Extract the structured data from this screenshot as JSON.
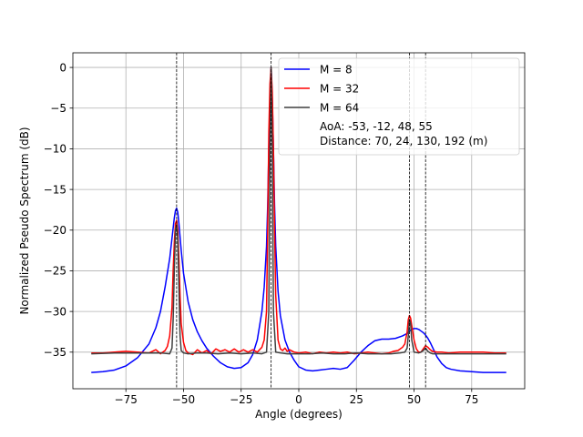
{
  "chart_data": {
    "type": "line",
    "title": "",
    "xlabel": "Angle (degrees)",
    "ylabel": "Normalized Pseudo Spectrum (dB)",
    "xlim": [
      -98,
      98
    ],
    "ylim": [
      -39.5,
      1.8
    ],
    "grid": true,
    "legend_position": "top-right",
    "xticks": [
      -75,
      -50,
      -25,
      0,
      25,
      50,
      75
    ],
    "xtick_labels": [
      "−75",
      "−50",
      "−25",
      "0",
      "25",
      "50",
      "75"
    ],
    "yticks": [
      0,
      -5,
      -10,
      -15,
      -20,
      -25,
      -30,
      -35
    ],
    "ytick_labels": [
      "0",
      "−5",
      "−10",
      "−15",
      "−20",
      "−25",
      "−30",
      "−35"
    ],
    "vlines": [
      -53,
      -12,
      48,
      55
    ],
    "annotation_lines": [
      "AoA: -53, -12, 48, 55",
      "Distance: 70, 24, 130, 192 (m)"
    ],
    "series": [
      {
        "name": "M = 8",
        "color": "#0000ff",
        "x": [
          -90,
          -85,
          -80,
          -75,
          -70,
          -65,
          -62,
          -60,
          -58,
          -56,
          -55,
          -54,
          -53.5,
          -53,
          -52.5,
          -52,
          -51,
          -50,
          -48,
          -46,
          -44,
          -42,
          -40,
          -37,
          -34,
          -31,
          -28,
          -25,
          -22,
          -20,
          -18,
          -16,
          -15,
          -14,
          -13.5,
          -13,
          -12.5,
          -12,
          -11.5,
          -11,
          -10.5,
          -10,
          -9,
          -8,
          -6,
          -4,
          -2,
          0,
          3,
          6,
          9,
          12,
          15,
          18,
          21,
          24,
          27,
          30,
          33,
          36,
          39,
          42,
          45,
          47,
          48,
          49,
          50,
          51,
          52,
          53,
          54,
          55,
          56,
          57,
          58,
          59,
          60,
          61,
          62,
          64,
          66,
          70,
          75,
          80,
          85,
          90
        ],
        "y": [
          -37.5,
          -37.4,
          -37.2,
          -36.7,
          -35.7,
          -34.0,
          -32.0,
          -30.0,
          -27.0,
          -23.5,
          -21.0,
          -18.5,
          -17.6,
          -17.3,
          -17.8,
          -19.2,
          -22.5,
          -25.3,
          -28.8,
          -31.0,
          -32.5,
          -33.6,
          -34.5,
          -35.5,
          -36.3,
          -36.8,
          -37.0,
          -36.9,
          -36.3,
          -35.3,
          -33.5,
          -30.0,
          -27.0,
          -22.0,
          -17.0,
          -10.0,
          -4.0,
          0.0,
          -4.0,
          -10.0,
          -17.0,
          -22.0,
          -27.5,
          -30.5,
          -33.5,
          -35.0,
          -36.0,
          -36.8,
          -37.2,
          -37.3,
          -37.2,
          -37.1,
          -37.0,
          -37.1,
          -36.9,
          -36.0,
          -35.0,
          -34.2,
          -33.6,
          -33.4,
          -33.4,
          -33.3,
          -33.0,
          -32.7,
          -32.4,
          -32.2,
          -32.1,
          -32.1,
          -32.2,
          -32.4,
          -32.6,
          -32.9,
          -33.3,
          -33.8,
          -34.4,
          -35.0,
          -35.6,
          -36.0,
          -36.4,
          -36.9,
          -37.1,
          -37.3,
          -37.4,
          -37.5,
          -37.5,
          -37.5
        ]
      },
      {
        "name": "M = 32",
        "color": "#ff0000",
        "x": [
          -90,
          -85,
          -80,
          -75,
          -70,
          -65,
          -62,
          -60,
          -58,
          -57,
          -56,
          -55,
          -54.5,
          -54,
          -53.5,
          -53,
          -52.5,
          -52,
          -51.5,
          -51,
          -50,
          -49,
          -48,
          -46,
          -44,
          -42,
          -40,
          -38,
          -36,
          -34,
          -32,
          -30,
          -28,
          -26,
          -24,
          -22,
          -20,
          -18,
          -16,
          -15,
          -14,
          -13.5,
          -13,
          -12.5,
          -12,
          -11.5,
          -11,
          -10.5,
          -10,
          -9,
          -8,
          -7,
          -6,
          -5,
          -4,
          -2,
          0,
          3,
          6,
          9,
          12,
          15,
          18,
          21,
          24,
          27,
          30,
          33,
          36,
          39,
          41,
          43,
          44,
          45,
          46,
          47,
          47.5,
          48,
          48.5,
          49,
          50,
          51,
          52,
          53,
          54,
          55,
          56,
          57,
          58,
          60,
          62,
          65,
          70,
          75,
          80,
          85,
          90
        ],
        "y": [
          -35.1,
          -35.1,
          -35.0,
          -34.9,
          -35.0,
          -35.1,
          -34.7,
          -35.2,
          -34.8,
          -34.3,
          -33.0,
          -29.5,
          -25.0,
          -21.5,
          -19.2,
          -18.8,
          -20.0,
          -23.5,
          -28.0,
          -31.5,
          -33.8,
          -34.8,
          -35.1,
          -35.3,
          -34.7,
          -35.1,
          -34.8,
          -35.2,
          -34.6,
          -34.9,
          -34.7,
          -35.0,
          -34.6,
          -35.0,
          -34.7,
          -35.0,
          -34.7,
          -35.0,
          -34.4,
          -33.5,
          -30.0,
          -20.0,
          -8.0,
          -2.0,
          0.0,
          -3.0,
          -10.0,
          -20.0,
          -28.0,
          -33.5,
          -34.6,
          -34.8,
          -34.5,
          -34.9,
          -34.7,
          -35.0,
          -35.1,
          -35.0,
          -35.2,
          -35.0,
          -35.1,
          -35.0,
          -35.1,
          -35.0,
          -35.2,
          -35.1,
          -35.0,
          -35.1,
          -35.2,
          -35.1,
          -34.9,
          -34.8,
          -34.6,
          -34.4,
          -34.0,
          -32.5,
          -31.0,
          -30.5,
          -30.8,
          -31.7,
          -33.5,
          -34.6,
          -35.0,
          -35.0,
          -34.6,
          -34.2,
          -34.4,
          -34.7,
          -34.9,
          -35.0,
          -35.0,
          -35.1,
          -35.0,
          -35.0,
          -35.0,
          -35.1,
          -35.1
        ]
      },
      {
        "name": "M = 64",
        "color": "#404040",
        "x": [
          -90,
          -80,
          -70,
          -60,
          -56,
          -55,
          -54.5,
          -54,
          -53.5,
          -53,
          -52.5,
          -52,
          -51.5,
          -51,
          -50,
          -48,
          -44,
          -40,
          -35,
          -30,
          -25,
          -20,
          -16,
          -14,
          -13,
          -12.5,
          -12,
          -11.5,
          -11,
          -10,
          -8,
          -5,
          0,
          5,
          10,
          15,
          20,
          25,
          30,
          35,
          40,
          44,
          46,
          47,
          47.5,
          48,
          48.5,
          49,
          50,
          52,
          53,
          54,
          55,
          56,
          57,
          58,
          60,
          65,
          70,
          80,
          90
        ],
        "y": [
          -35.2,
          -35.1,
          -35.1,
          -35.1,
          -35.2,
          -34.5,
          -31.0,
          -25.0,
          -20.0,
          -19.3,
          -21.0,
          -27.0,
          -33.0,
          -34.8,
          -35.1,
          -35.2,
          -35.1,
          -35.1,
          -35.2,
          -35.1,
          -35.2,
          -35.1,
          -35.2,
          -35.0,
          -30.0,
          -10.0,
          0.0,
          -10.0,
          -30.0,
          -35.0,
          -35.1,
          -35.2,
          -35.2,
          -35.2,
          -35.1,
          -35.2,
          -35.2,
          -35.1,
          -35.2,
          -35.2,
          -35.2,
          -35.1,
          -35.0,
          -34.5,
          -33.0,
          -31.0,
          -31.5,
          -33.5,
          -35.0,
          -35.1,
          -35.0,
          -34.8,
          -34.5,
          -34.9,
          -35.1,
          -35.2,
          -35.2,
          -35.2,
          -35.2,
          -35.2,
          -35.2
        ]
      }
    ]
  }
}
